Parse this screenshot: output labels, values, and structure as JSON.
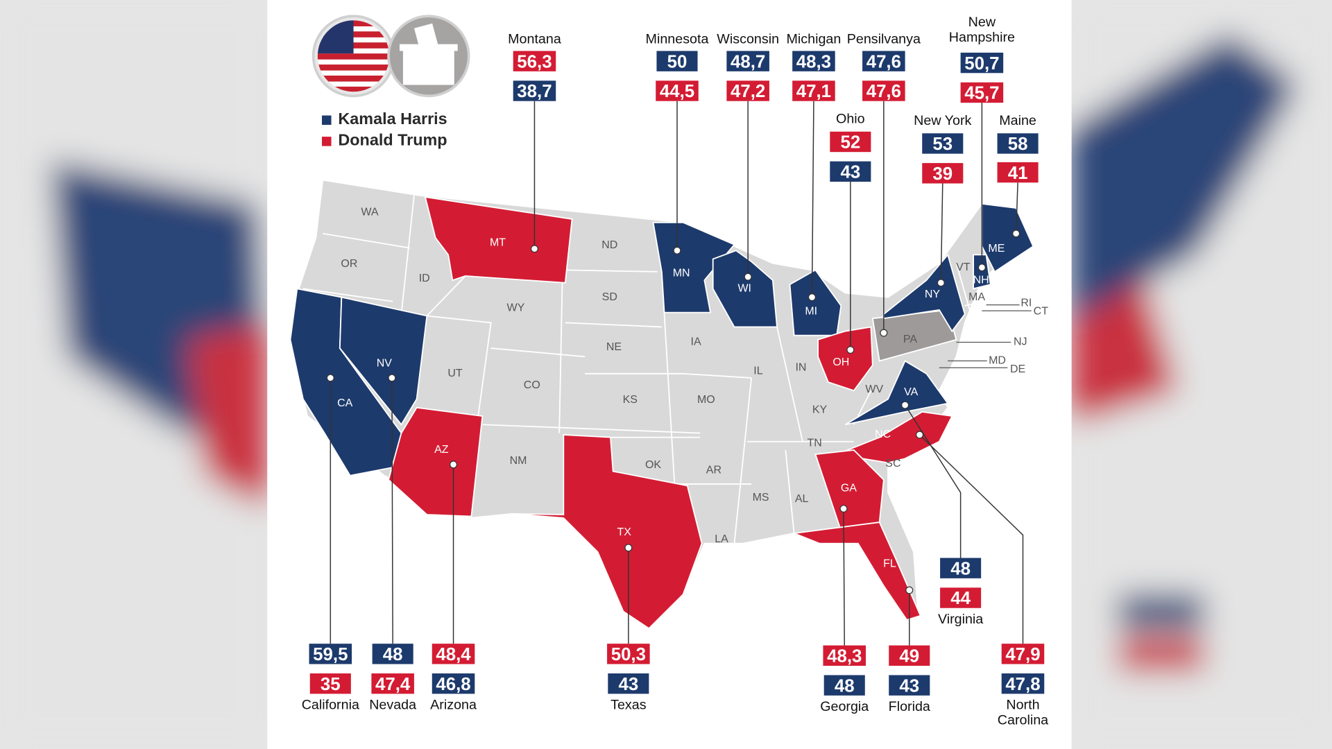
{
  "legend": [
    {
      "name": "Kamala Harris",
      "color": "#1d3a6c"
    },
    {
      "name": "Donald Trump",
      "color": "#d31c33"
    }
  ],
  "states": [
    "WA",
    "OR",
    "CA",
    "NV",
    "ID",
    "MT",
    "WY",
    "UT",
    "AZ",
    "CO",
    "NM",
    "ND",
    "SD",
    "NE",
    "KS",
    "OK",
    "TX",
    "MN",
    "IA",
    "MO",
    "AR",
    "LA",
    "WI",
    "IL",
    "MI",
    "IN",
    "OH",
    "KY",
    "TN",
    "MS",
    "AL",
    "GA",
    "FL",
    "SC",
    "NC",
    "VA",
    "WV",
    "PA",
    "NY",
    "VT",
    "NH",
    "ME",
    "MA",
    "RI",
    "CT",
    "NJ",
    "MD",
    "DE"
  ],
  "results": [
    {
      "name": "Montana",
      "boxes": [
        {
          "value": 56.3,
          "label": "56,3",
          "color": "#d31c33"
        },
        {
          "value": 38.7,
          "label": "38,7",
          "color": "#1d3a6c"
        }
      ]
    },
    {
      "name": "Minnesota",
      "boxes": [
        {
          "value": 50,
          "label": "50",
          "color": "#1d3a6c"
        },
        {
          "value": 44.5,
          "label": "44,5",
          "color": "#d31c33"
        }
      ]
    },
    {
      "name": "Wisconsin",
      "boxes": [
        {
          "value": 48.7,
          "label": "48,7",
          "color": "#1d3a6c"
        },
        {
          "value": 47.2,
          "label": "47,2",
          "color": "#d31c33"
        }
      ]
    },
    {
      "name": "Michigan",
      "boxes": [
        {
          "value": 48.3,
          "label": "48,3",
          "color": "#1d3a6c"
        },
        {
          "value": 47.1,
          "label": "47,1",
          "color": "#d31c33"
        }
      ]
    },
    {
      "name": "Pensilvanya",
      "boxes": [
        {
          "value": 47.6,
          "label": "47,6",
          "color": "#1d3a6c"
        },
        {
          "value": 47.6,
          "label": "47,6",
          "color": "#d31c33"
        }
      ]
    },
    {
      "name": "New Hampshire",
      "boxes": [
        {
          "value": 50.7,
          "label": "50,7",
          "color": "#1d3a6c"
        },
        {
          "value": 45.7,
          "label": "45,7",
          "color": "#d31c33"
        }
      ]
    },
    {
      "name": "Ohio",
      "boxes": [
        {
          "value": 52,
          "label": "52",
          "color": "#d31c33"
        },
        {
          "value": 43,
          "label": "43",
          "color": "#1d3a6c"
        }
      ]
    },
    {
      "name": "New York",
      "boxes": [
        {
          "value": 53,
          "label": "53",
          "color": "#1d3a6c"
        },
        {
          "value": 39,
          "label": "39",
          "color": "#d31c33"
        }
      ]
    },
    {
      "name": "Maine",
      "boxes": [
        {
          "value": 58,
          "label": "58",
          "color": "#1d3a6c"
        },
        {
          "value": 41,
          "label": "41",
          "color": "#d31c33"
        }
      ]
    },
    {
      "name": "Virginia",
      "boxes": [
        {
          "value": 48,
          "label": "48",
          "color": "#1d3a6c"
        },
        {
          "value": 44,
          "label": "44",
          "color": "#d31c33"
        }
      ]
    },
    {
      "name": "California",
      "boxes": [
        {
          "value": 59.5,
          "label": "59,5",
          "color": "#1d3a6c"
        },
        {
          "value": 35,
          "label": "35",
          "color": "#d31c33"
        }
      ]
    },
    {
      "name": "Nevada",
      "boxes": [
        {
          "value": 48,
          "label": "48",
          "color": "#1d3a6c"
        },
        {
          "value": 47.4,
          "label": "47,4",
          "color": "#d31c33"
        }
      ]
    },
    {
      "name": "Arizona",
      "boxes": [
        {
          "value": 48.4,
          "label": "48,4",
          "color": "#d31c33"
        },
        {
          "value": 46.8,
          "label": "46,8",
          "color": "#1d3a6c"
        }
      ]
    },
    {
      "name": "Texas",
      "boxes": [
        {
          "value": 50.3,
          "label": "50,3",
          "color": "#d31c33"
        },
        {
          "value": 43,
          "label": "43",
          "color": "#1d3a6c"
        }
      ]
    },
    {
      "name": "Georgia",
      "boxes": [
        {
          "value": 48.3,
          "label": "48,3",
          "color": "#d31c33"
        },
        {
          "value": 48,
          "label": "48",
          "color": "#1d3a6c"
        }
      ]
    },
    {
      "name": "Florida",
      "boxes": [
        {
          "value": 49,
          "label": "49",
          "color": "#d31c33"
        },
        {
          "value": 43,
          "label": "43",
          "color": "#1d3a6c"
        }
      ]
    },
    {
      "name": "North Carolina",
      "boxes": [
        {
          "value": 47.9,
          "label": "47,9",
          "color": "#d31c33"
        },
        {
          "value": 47.8,
          "label": "47,8",
          "color": "#1d3a6c"
        }
      ]
    }
  ]
}
